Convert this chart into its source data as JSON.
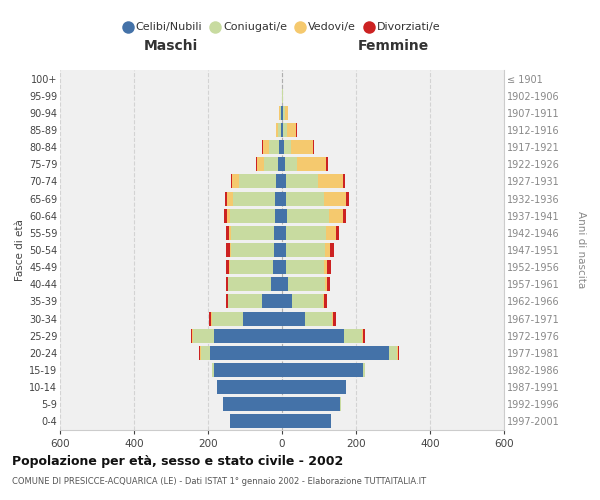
{
  "age_groups": [
    "0-4",
    "5-9",
    "10-14",
    "15-19",
    "20-24",
    "25-29",
    "30-34",
    "35-39",
    "40-44",
    "45-49",
    "50-54",
    "55-59",
    "60-64",
    "65-69",
    "70-74",
    "75-79",
    "80-84",
    "85-89",
    "90-94",
    "95-99",
    "100+"
  ],
  "birth_years": [
    "1997-2001",
    "1992-1996",
    "1987-1991",
    "1982-1986",
    "1977-1981",
    "1972-1976",
    "1967-1971",
    "1962-1966",
    "1957-1961",
    "1952-1956",
    "1947-1951",
    "1942-1946",
    "1937-1941",
    "1932-1936",
    "1927-1931",
    "1922-1926",
    "1917-1921",
    "1912-1916",
    "1907-1911",
    "1902-1906",
    "≤ 1901"
  ],
  "maschi_celibi": [
    140,
    160,
    175,
    185,
    195,
    185,
    105,
    55,
    30,
    25,
    22,
    22,
    20,
    18,
    15,
    10,
    8,
    4,
    2,
    0,
    0
  ],
  "maschi_coniugati": [
    0,
    0,
    2,
    5,
    25,
    55,
    85,
    90,
    115,
    115,
    115,
    115,
    120,
    115,
    100,
    40,
    28,
    8,
    3,
    0,
    0
  ],
  "maschi_vedovi": [
    0,
    0,
    0,
    0,
    2,
    2,
    2,
    2,
    2,
    2,
    3,
    5,
    10,
    15,
    20,
    18,
    15,
    5,
    2,
    0,
    0
  ],
  "maschi_divorziati": [
    0,
    0,
    0,
    0,
    3,
    5,
    5,
    5,
    5,
    8,
    12,
    10,
    8,
    5,
    3,
    2,
    2,
    0,
    0,
    0,
    0
  ],
  "femmine_nubili": [
    133,
    158,
    172,
    218,
    290,
    168,
    62,
    28,
    15,
    12,
    12,
    12,
    14,
    12,
    10,
    8,
    5,
    3,
    2,
    0,
    0
  ],
  "femmine_coniugate": [
    0,
    2,
    2,
    5,
    22,
    48,
    72,
    82,
    102,
    102,
    105,
    108,
    112,
    102,
    88,
    32,
    20,
    10,
    5,
    2,
    0
  ],
  "femmine_vedove": [
    0,
    0,
    0,
    0,
    2,
    3,
    3,
    3,
    5,
    8,
    14,
    25,
    38,
    58,
    68,
    78,
    58,
    25,
    8,
    1,
    0
  ],
  "femmine_divorziate": [
    0,
    0,
    0,
    0,
    2,
    4,
    8,
    8,
    8,
    10,
    10,
    10,
    10,
    8,
    5,
    5,
    3,
    2,
    0,
    0,
    0
  ],
  "colors_cel": "#4472a8",
  "colors_con": "#c8dba0",
  "colors_ved": "#f5c96e",
  "colors_div": "#cc2222",
  "xlim": 600,
  "xticks": [
    -600,
    -400,
    -200,
    0,
    200,
    400,
    600
  ],
  "title": "Popolazione per età, sesso e stato civile - 2002",
  "subtitle": "COMUNE DI PRESICCE-ACQUARICA (LE) - Dati ISTAT 1° gennaio 2002 - Elaborazione TUTTAITALIA.IT",
  "ylabel_left": "Fasce di età",
  "ylabel_right": "Anni di nascita",
  "label_maschi": "Maschi",
  "label_femmine": "Femmine",
  "legend_labels": [
    "Celibi/Nubili",
    "Coniugati/e",
    "Vedovi/e",
    "Divorziati/e"
  ],
  "bg_color": "#f0f0f0",
  "grid_color": "#cccccc"
}
